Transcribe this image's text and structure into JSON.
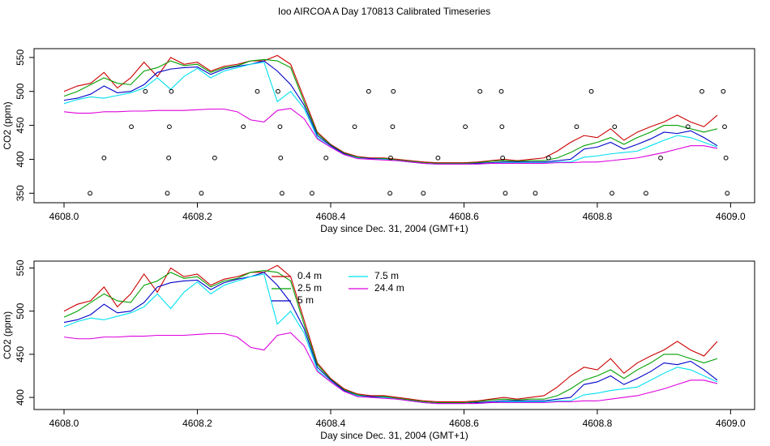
{
  "chart_data": [
    {
      "type": "line",
      "title": "Ioo AIRCOA A  Day 170813  Calibrated Timeseries",
      "x_label": "Day since Dec. 31, 2004 (GMT+1)",
      "y_label": "CO2 (ppm)",
      "xlim": [
        4607.955,
        4609.036
      ],
      "ylim": [
        336,
        563
      ],
      "xticks": [
        {
          "value": 4608.0,
          "label": "4608.0"
        },
        {
          "value": 4608.2,
          "label": "4608.2"
        },
        {
          "value": 4608.4,
          "label": "4608.4"
        },
        {
          "value": 4608.6,
          "label": "4608.6"
        },
        {
          "value": 4608.8,
          "label": "4608.8"
        },
        {
          "value": 4609.0,
          "label": "4609.0"
        }
      ],
      "yticks": [
        350,
        400,
        450,
        500,
        550
      ],
      "legend": false,
      "x": [
        4608.0,
        4608.02,
        4608.04,
        4608.06,
        4608.08,
        4608.1,
        4608.12,
        4608.14,
        4608.16,
        4608.18,
        4608.2,
        4608.22,
        4608.24,
        4608.26,
        4608.28,
        4608.3,
        4608.32,
        4608.34,
        4608.36,
        4608.38,
        4608.4,
        4608.42,
        4608.44,
        4608.46,
        4608.48,
        4608.5,
        4608.52,
        4608.54,
        4608.56,
        4608.58,
        4608.6,
        4608.62,
        4608.64,
        4608.66,
        4608.68,
        4608.7,
        4608.72,
        4608.74,
        4608.76,
        4608.78,
        4608.8,
        4608.82,
        4608.84,
        4608.86,
        4608.88,
        4608.9,
        4608.92,
        4608.94,
        4608.96,
        4608.98
      ],
      "series": [
        {
          "color": "#cc0000",
          "values": [
            500,
            508,
            512,
            528,
            505,
            520,
            543,
            522,
            550,
            540,
            543,
            530,
            537,
            540,
            545,
            545,
            553,
            540,
            490,
            440,
            422,
            410,
            404,
            402,
            402,
            400,
            398,
            396,
            395,
            395,
            395,
            396,
            398,
            400,
            398,
            400,
            402,
            412,
            425,
            435,
            432,
            445,
            428,
            440,
            448,
            455,
            465,
            455,
            448,
            465
          ]
        },
        {
          "color": "#00a000",
          "values": [
            493,
            500,
            510,
            520,
            512,
            510,
            530,
            535,
            545,
            538,
            540,
            528,
            535,
            538,
            545,
            547,
            545,
            535,
            485,
            438,
            421,
            409,
            403,
            401,
            401,
            399,
            397,
            395,
            394,
            394,
            394,
            395,
            397,
            398,
            397,
            398,
            398,
            402,
            410,
            420,
            425,
            432,
            422,
            432,
            440,
            450,
            450,
            445,
            440,
            445
          ]
        },
        {
          "color": "#0000c8",
          "values": [
            487,
            490,
            496,
            508,
            498,
            500,
            510,
            528,
            533,
            535,
            536,
            525,
            533,
            537,
            540,
            545,
            530,
            510,
            480,
            435,
            420,
            408,
            402,
            401,
            400,
            398,
            396,
            394,
            393,
            393,
            393,
            394,
            395,
            396,
            396,
            396,
            396,
            398,
            400,
            415,
            418,
            425,
            415,
            422,
            430,
            440,
            438,
            442,
            432,
            420
          ]
        },
        {
          "color": "#00e0f0",
          "values": [
            482,
            488,
            492,
            490,
            494,
            498,
            505,
            520,
            503,
            522,
            534,
            520,
            530,
            535,
            540,
            543,
            485,
            500,
            475,
            432,
            418,
            407,
            402,
            400,
            400,
            398,
            396,
            394,
            393,
            393,
            393,
            393,
            394,
            395,
            395,
            395,
            395,
            396,
            396,
            403,
            405,
            408,
            410,
            412,
            420,
            428,
            435,
            432,
            425,
            418
          ]
        },
        {
          "color": "#dd00dd",
          "values": [
            470,
            468,
            468,
            470,
            470,
            471,
            471,
            472,
            472,
            472,
            473,
            474,
            474,
            470,
            458,
            455,
            472,
            475,
            460,
            430,
            418,
            407,
            401,
            400,
            399,
            398,
            396,
            394,
            393,
            393,
            393,
            393,
            394,
            394,
            394,
            394,
            394,
            395,
            395,
            396,
            396,
            398,
            400,
            402,
            406,
            410,
            415,
            420,
            420,
            416
          ]
        },
        {
          "type": "scatter",
          "color": "#000000",
          "x": [
            4608.122,
            4608.161,
            4608.29,
            4608.321,
            4608.457,
            4608.494,
            4608.624,
            4608.656,
            4608.791,
            4608.957,
            4608.989,
            4608.101,
            4608.158,
            4608.269,
            4608.324,
            4608.436,
            4608.493,
            4608.602,
            4608.657,
            4608.769,
            4608.826,
            4608.936,
            4608.991,
            4608.06,
            4608.157,
            4608.226,
            4608.325,
            4608.393,
            4608.49,
            4608.561,
            4608.658,
            4608.727,
            4608.895,
            4608.993,
            4608.039,
            4608.155,
            4608.206,
            4608.327,
            4608.372,
            4608.489,
            4608.539,
            4608.662,
            4608.707,
            4608.822,
            4608.873,
            4608.995
          ],
          "values": [
            500,
            500,
            500,
            500,
            500,
            500,
            500,
            500,
            500,
            500,
            500,
            448,
            448,
            448,
            448,
            448,
            448,
            448,
            448,
            448,
            448,
            448,
            448,
            402,
            402,
            402,
            402,
            402,
            402,
            402,
            402,
            402,
            402,
            402,
            350,
            350,
            350,
            350,
            350,
            350,
            350,
            350,
            350,
            350,
            350,
            350
          ]
        }
      ]
    },
    {
      "type": "line",
      "x_label": "Day since Dec. 31, 2004 (GMT+1)",
      "y_label": "CO2 (ppm)",
      "xlim": [
        4607.955,
        4609.036
      ],
      "ylim": [
        386,
        558
      ],
      "xticks": [
        {
          "value": 4608.0,
          "label": "4608.0"
        },
        {
          "value": 4608.2,
          "label": "4608.2"
        },
        {
          "value": 4608.4,
          "label": "4608.4"
        },
        {
          "value": 4608.6,
          "label": "4608.6"
        },
        {
          "value": 4608.8,
          "label": "4608.8"
        },
        {
          "value": 4609.0,
          "label": "4609.0"
        }
      ],
      "yticks": [
        400,
        450,
        500,
        550
      ],
      "legend": "top",
      "x": [
        4608.0,
        4608.02,
        4608.04,
        4608.06,
        4608.08,
        4608.1,
        4608.12,
        4608.14,
        4608.16,
        4608.18,
        4608.2,
        4608.22,
        4608.24,
        4608.26,
        4608.28,
        4608.3,
        4608.32,
        4608.34,
        4608.36,
        4608.38,
        4608.4,
        4608.42,
        4608.44,
        4608.46,
        4608.48,
        4608.5,
        4608.52,
        4608.54,
        4608.56,
        4608.58,
        4608.6,
        4608.62,
        4608.64,
        4608.66,
        4608.68,
        4608.7,
        4608.72,
        4608.74,
        4608.76,
        4608.78,
        4608.8,
        4608.82,
        4608.84,
        4608.86,
        4608.88,
        4608.9,
        4608.92,
        4608.94,
        4608.96,
        4608.98
      ],
      "series": [
        {
          "name": "0.4 m",
          "color": "#cc0000",
          "values": [
            500,
            508,
            512,
            528,
            505,
            520,
            543,
            522,
            550,
            540,
            543,
            530,
            537,
            540,
            545,
            545,
            553,
            540,
            490,
            440,
            422,
            410,
            404,
            402,
            402,
            400,
            398,
            396,
            395,
            395,
            395,
            396,
            398,
            400,
            398,
            400,
            402,
            412,
            425,
            435,
            432,
            445,
            428,
            440,
            448,
            455,
            465,
            455,
            448,
            465
          ]
        },
        {
          "name": "2.5 m",
          "color": "#00a000",
          "values": [
            493,
            500,
            510,
            520,
            512,
            510,
            530,
            535,
            545,
            538,
            540,
            528,
            535,
            538,
            545,
            547,
            545,
            535,
            485,
            438,
            421,
            409,
            403,
            401,
            401,
            399,
            397,
            395,
            394,
            394,
            394,
            395,
            397,
            398,
            397,
            398,
            398,
            402,
            410,
            420,
            425,
            432,
            422,
            432,
            440,
            450,
            450,
            445,
            440,
            445
          ]
        },
        {
          "name": "5 m",
          "color": "#0000c8",
          "values": [
            487,
            490,
            496,
            508,
            498,
            500,
            510,
            528,
            533,
            535,
            536,
            525,
            533,
            537,
            540,
            545,
            530,
            510,
            480,
            435,
            420,
            408,
            402,
            401,
            400,
            398,
            396,
            394,
            393,
            393,
            393,
            394,
            395,
            396,
            396,
            396,
            396,
            398,
            400,
            415,
            418,
            425,
            415,
            422,
            430,
            440,
            438,
            442,
            432,
            420
          ]
        },
        {
          "name": "7.5 m",
          "color": "#00e0f0",
          "values": [
            482,
            488,
            492,
            490,
            494,
            498,
            505,
            520,
            503,
            522,
            534,
            520,
            530,
            535,
            540,
            543,
            485,
            500,
            475,
            432,
            418,
            407,
            402,
            400,
            400,
            398,
            396,
            394,
            393,
            393,
            393,
            393,
            394,
            395,
            395,
            395,
            395,
            396,
            396,
            403,
            405,
            408,
            410,
            412,
            420,
            428,
            435,
            432,
            425,
            418
          ]
        },
        {
          "name": "24.4 m",
          "color": "#dd00dd",
          "values": [
            470,
            468,
            468,
            470,
            470,
            471,
            471,
            472,
            472,
            472,
            473,
            474,
            474,
            470,
            458,
            455,
            472,
            475,
            460,
            430,
            418,
            407,
            401,
            400,
            399,
            398,
            396,
            394,
            393,
            393,
            393,
            393,
            394,
            394,
            394,
            394,
            394,
            395,
            395,
            396,
            396,
            398,
            400,
            402,
            406,
            410,
            415,
            420,
            420,
            416
          ]
        }
      ]
    }
  ]
}
